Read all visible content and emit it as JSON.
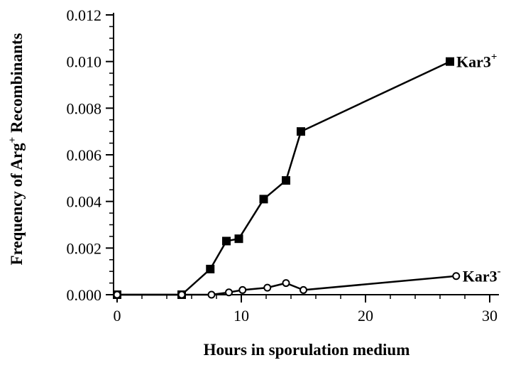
{
  "chart_data": {
    "type": "line",
    "title": "",
    "xlabel": "Hours in sporulation medium",
    "ylabel": {
      "pre": "Frequency of Arg",
      "sup": "+",
      "post": " Recombinants"
    },
    "xlim": [
      0,
      30
    ],
    "ylim": [
      0,
      0.012
    ],
    "xticks": [
      0,
      10,
      20,
      30
    ],
    "xtick_labels": [
      "0",
      "10",
      "20",
      "30"
    ],
    "yticks": [
      0,
      0.002,
      0.004,
      0.006,
      0.008,
      0.01,
      0.012
    ],
    "ytick_labels": [
      "0.000",
      "0.002",
      "0.004",
      "0.006",
      "0.008",
      "0.010",
      "0.012"
    ],
    "grid": false,
    "legend": "none",
    "series": [
      {
        "name": "Kar3+",
        "label_text": "Kar3",
        "label_sup": "+",
        "marker": "filled-square",
        "color": "#000000",
        "x": [
          0,
          5.2,
          7.5,
          8.8,
          9.8,
          11.8,
          13.6,
          14.8,
          26.8
        ],
        "y": [
          0.0,
          0.0,
          0.0011,
          0.0023,
          0.0024,
          0.0041,
          0.0049,
          0.007,
          0.01
        ]
      },
      {
        "name": "Kar3-",
        "label_text": "Kar3",
        "label_sup": "-",
        "marker": "open-circle",
        "color": "#000000",
        "x": [
          0,
          5.2,
          7.6,
          9.0,
          10.1,
          12.1,
          13.6,
          15.0,
          27.3
        ],
        "y": [
          0.0,
          0.0,
          0.0,
          0.0001,
          0.0002,
          0.0003,
          0.0005,
          0.0002,
          0.0008
        ]
      }
    ]
  }
}
